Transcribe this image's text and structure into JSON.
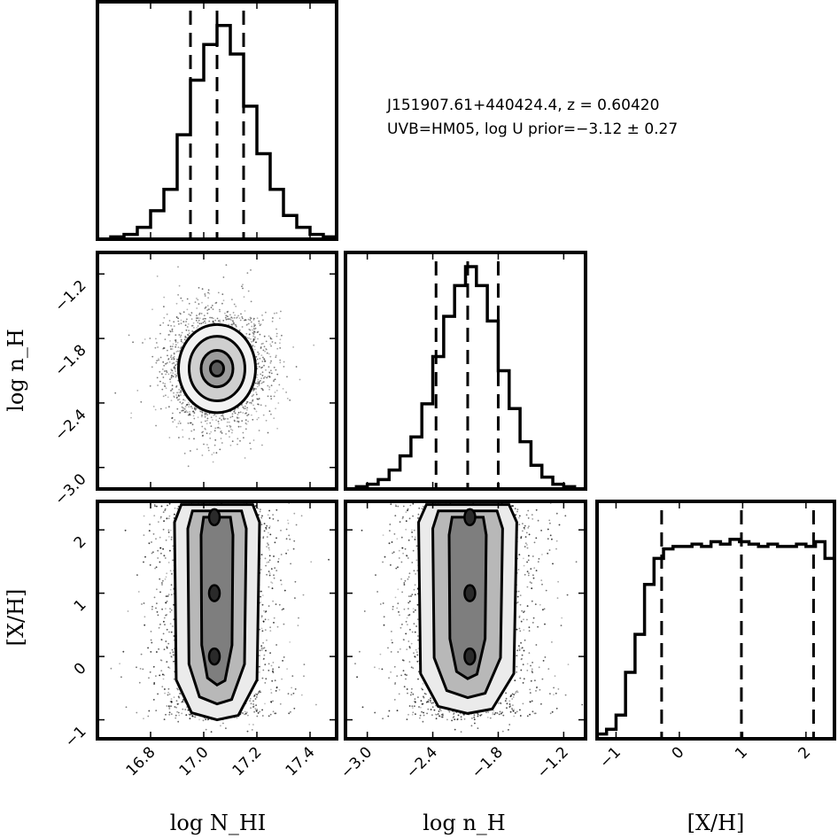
{
  "annotation": {
    "line1": "J151907.61+440424.4, z = 0.60420",
    "line2": "UVB=HM05, log U prior=−3.12 ± 0.27"
  },
  "chart_data": {
    "type": "corner",
    "parameters": [
      {
        "key": "logNHI",
        "label": "log N_HI",
        "range": [
          16.6,
          17.5
        ],
        "ticks": [
          16.8,
          17.0,
          17.2,
          17.4
        ],
        "tick_labels": [
          "16.8",
          "17.0",
          "17.2",
          "17.4"
        ]
      },
      {
        "key": "lognH",
        "label": "log n_H",
        "range": [
          -3.2,
          -1.0
        ],
        "ticks": [
          -3.0,
          -2.4,
          -1.8,
          -1.2
        ],
        "tick_labels": [
          "−3.0",
          "−2.4",
          "−1.8",
          "−1.2"
        ]
      },
      {
        "key": "XH",
        "label": "[X/H]",
        "range": [
          -1.3,
          2.45
        ],
        "ticks": [
          -1,
          0,
          1,
          2
        ],
        "tick_labels": [
          "−1",
          "0",
          "1",
          "2"
        ]
      }
    ],
    "histograms": [
      {
        "param": "logNHI",
        "bin_edges": [
          16.6,
          16.65,
          16.7,
          16.75,
          16.8,
          16.85,
          16.9,
          16.95,
          17.0,
          17.05,
          17.1,
          17.15,
          17.2,
          17.25,
          17.3,
          17.35,
          17.4,
          17.45,
          17.5
        ],
        "counts": [
          0.0,
          0.01,
          0.02,
          0.05,
          0.12,
          0.21,
          0.44,
          0.67,
          0.82,
          0.9,
          0.78,
          0.56,
          0.36,
          0.21,
          0.1,
          0.05,
          0.02,
          0.01
        ],
        "quantiles": [
          16.95,
          17.05,
          17.15
        ]
      },
      {
        "param": "lognH",
        "bin_edges": [
          -3.2,
          -3.1,
          -3.0,
          -2.9,
          -2.8,
          -2.7,
          -2.6,
          -2.5,
          -2.4,
          -2.3,
          -2.2,
          -2.1,
          -2.0,
          -1.9,
          -1.8,
          -1.7,
          -1.6,
          -1.5,
          -1.4,
          -1.3,
          -1.2,
          -1.1,
          -1.0
        ],
        "counts": [
          0.0,
          0.01,
          0.02,
          0.04,
          0.08,
          0.14,
          0.22,
          0.36,
          0.56,
          0.73,
          0.86,
          0.94,
          0.86,
          0.71,
          0.5,
          0.34,
          0.2,
          0.1,
          0.05,
          0.02,
          0.01,
          0.0
        ],
        "quantiles": [
          -2.37,
          -2.08,
          -1.8
        ]
      },
      {
        "param": "XH",
        "bin_edges": [
          -1.3,
          -1.15,
          -1.0,
          -0.85,
          -0.7,
          -0.55,
          -0.4,
          -0.25,
          -0.1,
          0.05,
          0.2,
          0.35,
          0.5,
          0.65,
          0.8,
          0.95,
          1.1,
          1.25,
          1.4,
          1.55,
          1.7,
          1.85,
          2.0,
          2.15,
          2.3,
          2.45
        ],
        "counts": [
          0.02,
          0.04,
          0.1,
          0.28,
          0.44,
          0.65,
          0.76,
          0.8,
          0.81,
          0.81,
          0.82,
          0.81,
          0.83,
          0.82,
          0.84,
          0.83,
          0.82,
          0.81,
          0.82,
          0.81,
          0.81,
          0.82,
          0.81,
          0.83,
          0.76
        ],
        "quantiles": [
          -0.28,
          0.98,
          2.12
        ]
      }
    ],
    "pairs": [
      {
        "x": "logNHI",
        "y": "lognH",
        "center": [
          17.05,
          -2.08
        ],
        "contours": [
          {
            "level": "outer",
            "rx": 0.145,
            "ry": 0.41
          },
          {
            "level": "middle",
            "rx": 0.105,
            "ry": 0.3
          },
          {
            "level": "inner",
            "rx": 0.06,
            "ry": 0.17
          },
          {
            "level": "core",
            "rx": 0.025,
            "ry": 0.07
          }
        ]
      },
      {
        "x": "logNHI",
        "y": "XH",
        "center": [
          17.05,
          0.6
        ],
        "contours": [
          {
            "level": "outer",
            "x_half": 0.16,
            "y_range": [
              -1.0,
              2.4
            ]
          },
          {
            "level": "middle",
            "x_half": 0.11,
            "y_range": [
              -0.75,
              2.3
            ]
          },
          {
            "level": "inner",
            "x_half": 0.06,
            "y_range": [
              -0.45,
              2.2
            ]
          }
        ]
      },
      {
        "x": "lognH",
        "y": "XH",
        "center": [
          -2.08,
          0.6
        ],
        "contours": [
          {
            "level": "outer",
            "x_half": 0.45,
            "y_range": [
              -0.9,
              2.4
            ]
          },
          {
            "level": "middle",
            "x_half": 0.32,
            "y_range": [
              -0.65,
              2.3
            ]
          },
          {
            "level": "inner",
            "x_half": 0.17,
            "y_range": [
              -0.35,
              2.2
            ]
          }
        ]
      }
    ]
  }
}
